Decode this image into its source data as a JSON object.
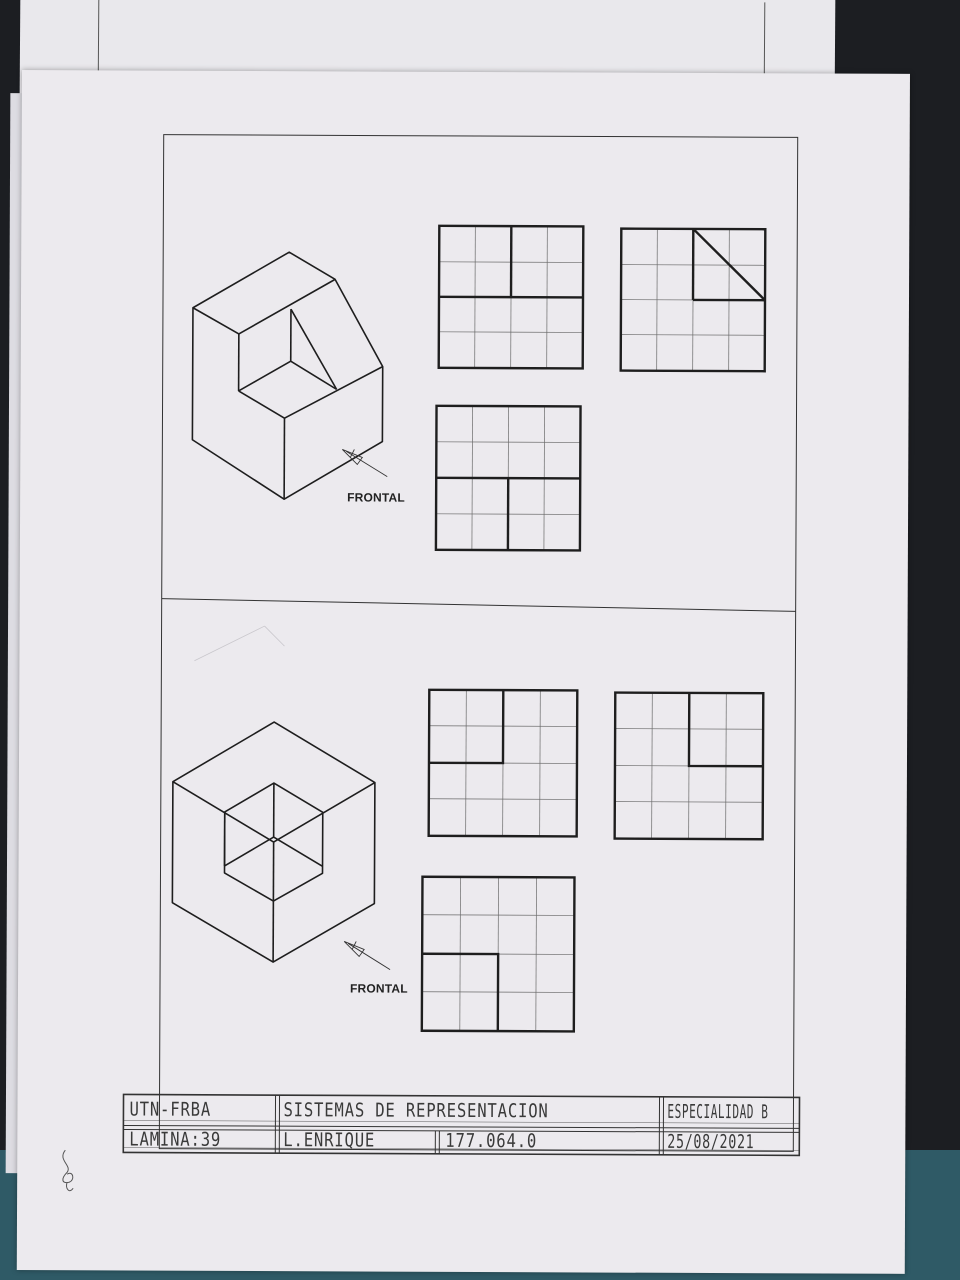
{
  "drawings": [
    {
      "id": "exercise-1",
      "view_direction_label": "FRONTAL"
    },
    {
      "id": "exercise-2",
      "view_direction_label": "FRONTAL"
    }
  ],
  "title_block": {
    "institution": "UTN-FRBA",
    "subject": "SISTEMAS DE REPRESENTACION",
    "specialty": "ESPECIALIDAD B",
    "sheet": "LAMINA:39",
    "student": "L.ENRIQUE",
    "student_id": "177.064.0",
    "date": "25/08/2021"
  },
  "colors": {
    "paper": "#eceaee",
    "ink": "#1e1e1e",
    "grid": "#6a6a6a",
    "desk": "#1c1e22",
    "pencil": "#3a3a3a"
  }
}
